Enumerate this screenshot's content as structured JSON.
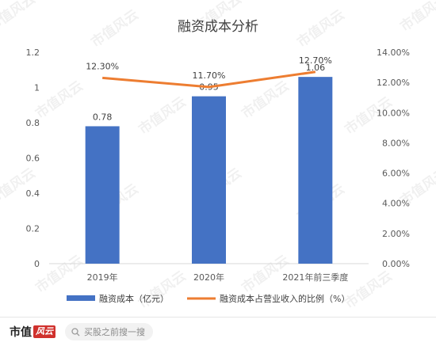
{
  "chart_data": {
    "type": "bar+line",
    "title": "融资成本分析",
    "categories": [
      "2019年",
      "2020年",
      "2021年前三季度"
    ],
    "bar_series": {
      "name": "融资成本（亿元）",
      "values": [
        0.78,
        0.95,
        1.06
      ],
      "labels": [
        "0.78",
        "0.95",
        "1.06"
      ],
      "color": "#4472c4"
    },
    "line_series": {
      "name": "融资成本占营业收入的比例（%）",
      "values": [
        12.3,
        11.7,
        12.7
      ],
      "labels": [
        "12.30%",
        "11.70%",
        "12.70%"
      ],
      "color": "#ed7d31"
    },
    "y_left": {
      "min": 0,
      "max": 1.2,
      "ticks": [
        "0",
        "0.2",
        "0.4",
        "0.6",
        "0.8",
        "1",
        "1.2"
      ],
      "tick_values": [
        0,
        0.2,
        0.4,
        0.6,
        0.8,
        1.0,
        1.2
      ]
    },
    "y_right": {
      "min": 0,
      "max": 14,
      "ticks": [
        "0.00%",
        "2.00%",
        "4.00%",
        "6.00%",
        "8.00%",
        "10.00%",
        "12.00%",
        "14.00%"
      ],
      "tick_values": [
        0,
        2,
        4,
        6,
        8,
        10,
        12,
        14
      ]
    },
    "grid": false,
    "legend": "bottom"
  },
  "watermark": {
    "text": "市值风云"
  },
  "footer": {
    "brand": "市值",
    "brand_stamp": "风云",
    "search_placeholder": "买股之前搜一搜"
  }
}
